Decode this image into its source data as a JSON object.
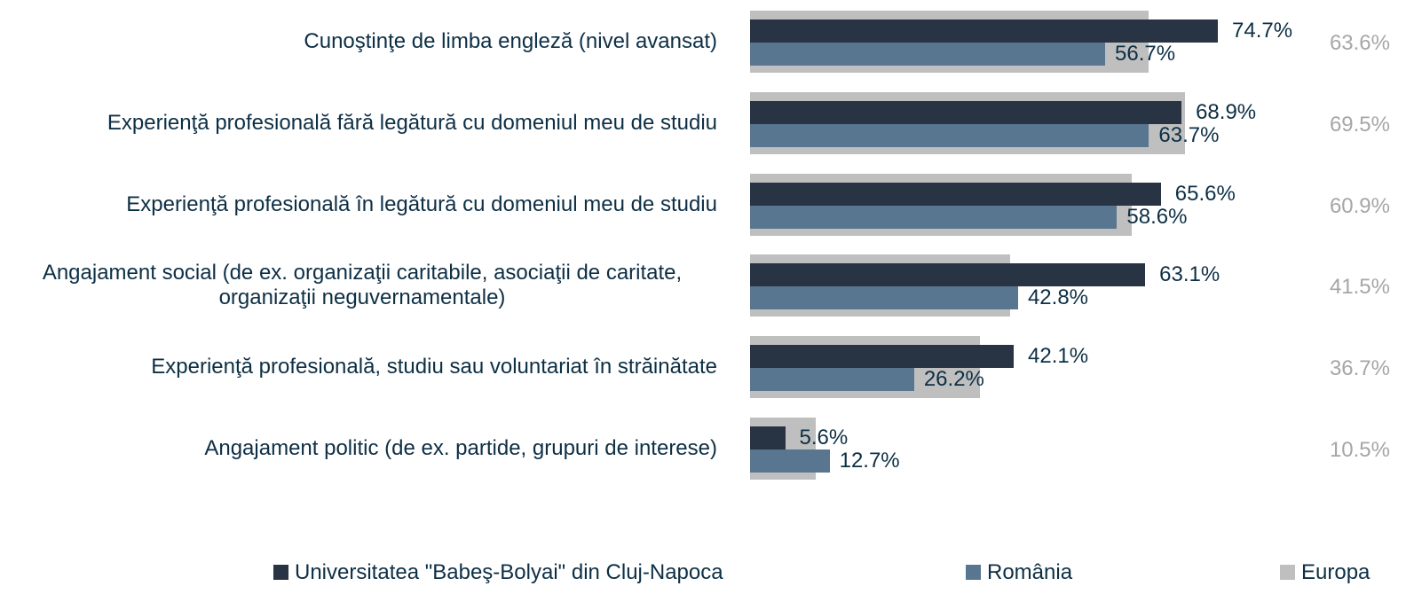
{
  "chart_data": {
    "type": "barh",
    "categories": [
      "Cunoştinţe de limba engleză (nivel avansat)",
      "Experienţă profesională fără legătură cu domeniul meu de studiu",
      "Experienţă profesională în legătură cu domeniul meu de studiu",
      "Angajament social (de ex. organizaţii caritabile, asociaţii de caritate, organizaţii neguvernamentale)",
      "Experienţă profesională, studiu sau voluntariat în străinătate",
      "Angajament politic (de ex. partide, grupuri de interese)"
    ],
    "series": [
      {
        "name": "Universitatea \"Babeş-Bolyai\" din Cluj-Napoca",
        "color": "#283343",
        "values": [
          74.7,
          68.9,
          65.6,
          63.1,
          42.1,
          5.6
        ],
        "value_labels": [
          "74.7%",
          "68.9%",
          "65.6%",
          "63.1%",
          "42.1%",
          "5.6%"
        ]
      },
      {
        "name": "România",
        "color": "#587690",
        "values": [
          56.7,
          63.7,
          58.6,
          42.8,
          26.2,
          12.7
        ],
        "value_labels": [
          "56.7%",
          "63.7%",
          "58.6%",
          "42.8%",
          "26.2%",
          "12.7%"
        ]
      },
      {
        "name": "Europa",
        "color": "#bfbfbf",
        "values": [
          63.6,
          69.5,
          60.9,
          41.5,
          36.7,
          10.5
        ],
        "value_labels": [
          "63.6%",
          "69.5%",
          "60.9%",
          "41.5%",
          "36.7%",
          "10.5%"
        ]
      }
    ],
    "legend": "bottom"
  }
}
